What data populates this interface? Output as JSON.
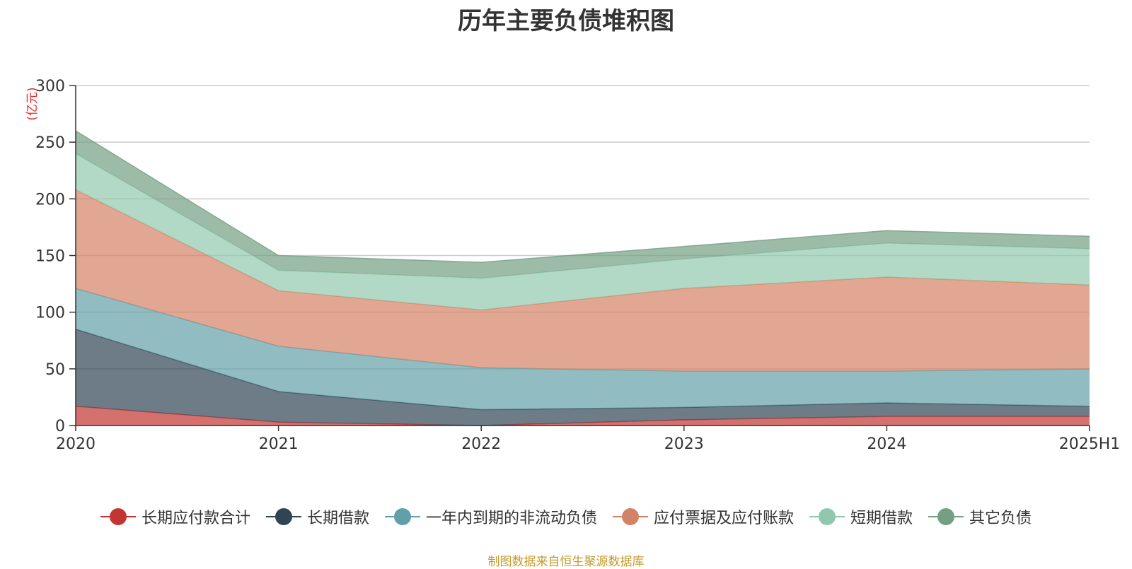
{
  "chart_data": {
    "type": "area",
    "stacked": true,
    "title": "历年主要负债堆积图",
    "ylabel": "(亿元)",
    "categories": [
      "2020",
      "2021",
      "2022",
      "2023",
      "2024",
      "2025H1"
    ],
    "ylim": [
      0,
      300
    ],
    "yticks": [
      0,
      50,
      100,
      150,
      200,
      250,
      300
    ],
    "grid": true,
    "legend_position": "bottom",
    "series": [
      {
        "name": "长期应付款合计",
        "color": "#c23531",
        "values": [
          17,
          3,
          0,
          5,
          8,
          8
        ]
      },
      {
        "name": "长期借款",
        "color": "#2f4554",
        "values": [
          68,
          27,
          14,
          11,
          12,
          9
        ]
      },
      {
        "name": "一年内到期的非流动负债",
        "color": "#61a0a8",
        "values": [
          36,
          40,
          37,
          32,
          28,
          33
        ]
      },
      {
        "name": "应付票据及应付账款",
        "color": "#d48265",
        "values": [
          87,
          49,
          51,
          73,
          83,
          74
        ]
      },
      {
        "name": "短期借款",
        "color": "#91c7ae",
        "values": [
          32,
          18,
          28,
          26,
          30,
          32
        ]
      },
      {
        "name": "其它负债",
        "color": "#749f83",
        "values": [
          20,
          13,
          14,
          11,
          11,
          11
        ]
      }
    ]
  },
  "source_note": "制图数据来自恒生聚源数据库"
}
